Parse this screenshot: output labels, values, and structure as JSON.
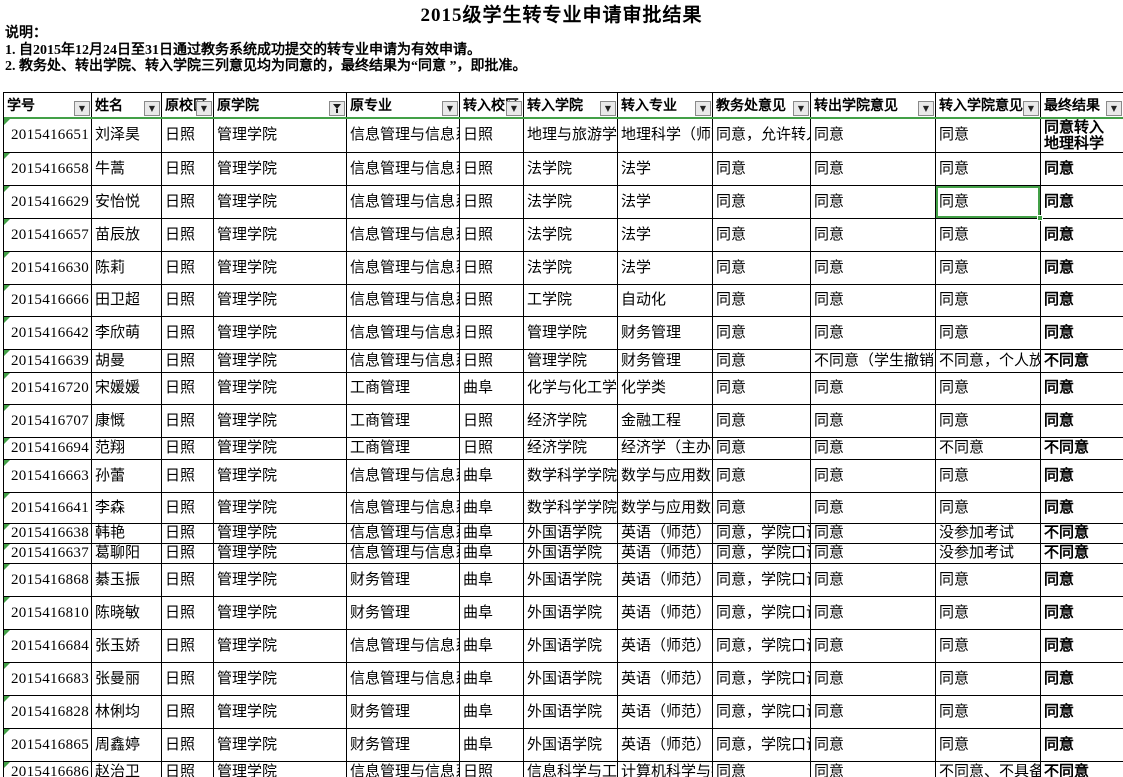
{
  "title": "2015级学生转专业申请审批结果",
  "notes": {
    "heading": "说明：",
    "line1": "1. 自2015年12月24日至31日通过教务系统成功提交的转专业申请为有效申请。",
    "line2": "2. 教务处、转出学院、转入学院三列意见均为同意的，最终结果为“同意 ”，即批准。"
  },
  "colors": {
    "accent_green": "#43a047",
    "grid_line": "#000000",
    "filter_button_bg": "#e9e9e9"
  },
  "table": {
    "columns": [
      {
        "label": "学号",
        "filter_icon": "dropdown-arrow"
      },
      {
        "label": "姓名",
        "filter_icon": "dropdown-arrow"
      },
      {
        "label": "原校区",
        "filter_icon": "dropdown-arrow"
      },
      {
        "label": "原学院",
        "filter_icon": "funnel"
      },
      {
        "label": "原专业",
        "filter_icon": "dropdown-arrow"
      },
      {
        "label": "转入校区",
        "filter_icon": "dropdown-arrow"
      },
      {
        "label": "转入学院",
        "filter_icon": "dropdown-arrow"
      },
      {
        "label": "转入专业",
        "filter_icon": "dropdown-arrow"
      },
      {
        "label": "教务处意见",
        "filter_icon": "dropdown-arrow"
      },
      {
        "label": "转出学院意见",
        "filter_icon": "dropdown-arrow"
      },
      {
        "label": "转入学院意见",
        "filter_icon": "dropdown-arrow"
      },
      {
        "label": "最终结果",
        "filter_icon": "dropdown-arrow"
      }
    ],
    "rows": [
      [
        "2015416651",
        "刘泽昊",
        "日照",
        "管理学院",
        "信息管理与信息系统",
        "日照",
        "地理与旅游学院",
        "地理科学（师范）",
        "同意，允许转入",
        "同意",
        "同意",
        "同意转入\n地理科学"
      ],
      [
        "2015416658",
        "牛蒿",
        "日照",
        "管理学院",
        "信息管理与信息系统",
        "日照",
        "法学院",
        "法学",
        "同意",
        "同意",
        "同意",
        "同意"
      ],
      [
        "2015416629",
        "安怡悦",
        "日照",
        "管理学院",
        "信息管理与信息系统",
        "日照",
        "法学院",
        "法学",
        "同意",
        "同意",
        "同意",
        "同意"
      ],
      [
        "2015416657",
        "苗辰放",
        "日照",
        "管理学院",
        "信息管理与信息系统",
        "日照",
        "法学院",
        "法学",
        "同意",
        "同意",
        "同意",
        "同意"
      ],
      [
        "2015416630",
        "陈莉",
        "日照",
        "管理学院",
        "信息管理与信息系统",
        "日照",
        "法学院",
        "法学",
        "同意",
        "同意",
        "同意",
        "同意"
      ],
      [
        "2015416666",
        "田卫超",
        "日照",
        "管理学院",
        "信息管理与信息系统",
        "日照",
        "工学院",
        "自动化",
        "同意",
        "同意",
        "同意",
        "同意"
      ],
      [
        "2015416642",
        "李欣萌",
        "日照",
        "管理学院",
        "信息管理与信息系统",
        "日照",
        "管理学院",
        "财务管理",
        "同意",
        "同意",
        "同意",
        "同意"
      ],
      [
        "2015416639",
        "胡曼",
        "日照",
        "管理学院",
        "信息管理与信息系统",
        "日照",
        "管理学院",
        "财务管理",
        "同意",
        "不同意（学生撤销）",
        "不同意，个人放弃",
        "不同意"
      ],
      [
        "2015416720",
        "宋媛媛",
        "日照",
        "管理学院",
        "工商管理",
        "曲阜",
        "化学与化工学院",
        "化学类",
        "同意",
        "同意",
        "同意",
        "同意"
      ],
      [
        "2015416707",
        "康慨",
        "日照",
        "管理学院",
        "工商管理",
        "日照",
        "经济学院",
        "金融工程",
        "同意",
        "同意",
        "同意",
        "同意"
      ],
      [
        "2015416694",
        "范翔",
        "日照",
        "管理学院",
        "工商管理",
        "日照",
        "经济学院",
        "经济学（主办）",
        "同意",
        "同意",
        "不同意",
        "不同意"
      ],
      [
        "2015416663",
        "孙蕾",
        "日照",
        "管理学院",
        "信息管理与信息系统",
        "曲阜",
        "数学科学学院",
        "数学与应用数学",
        "同意",
        "同意",
        "同意",
        "同意"
      ],
      [
        "2015416641",
        "李森",
        "日照",
        "管理学院",
        "信息管理与信息系统",
        "曲阜",
        "数学科学学院",
        "数学与应用数学",
        "同意",
        "同意",
        "同意",
        "同意"
      ],
      [
        "2015416638",
        "韩艳",
        "日照",
        "管理学院",
        "信息管理与信息系统",
        "曲阜",
        "外国语学院",
        "英语（师范）",
        "同意，学院口试",
        "同意",
        "没参加考试",
        "不同意"
      ],
      [
        "2015416637",
        "葛聊阳",
        "日照",
        "管理学院",
        "信息管理与信息系统",
        "曲阜",
        "外国语学院",
        "英语（师范）",
        "同意，学院口试",
        "同意",
        "没参加考试",
        "不同意"
      ],
      [
        "2015416868",
        "綦玉振",
        "日照",
        "管理学院",
        "财务管理",
        "曲阜",
        "外国语学院",
        "英语（师范）",
        "同意，学院口试",
        "同意",
        "同意",
        "同意"
      ],
      [
        "2015416810",
        "陈晓敏",
        "日照",
        "管理学院",
        "财务管理",
        "曲阜",
        "外国语学院",
        "英语（师范）",
        "同意，学院口试",
        "同意",
        "同意",
        "同意"
      ],
      [
        "2015416684",
        "张玉娇",
        "日照",
        "管理学院",
        "信息管理与信息系统",
        "曲阜",
        "外国语学院",
        "英语（师范）",
        "同意，学院口试",
        "同意",
        "同意",
        "同意"
      ],
      [
        "2015416683",
        "张曼丽",
        "日照",
        "管理学院",
        "信息管理与信息系统",
        "曲阜",
        "外国语学院",
        "英语（师范）",
        "同意，学院口试",
        "同意",
        "同意",
        "同意"
      ],
      [
        "2015416828",
        "林俐均",
        "日照",
        "管理学院",
        "财务管理",
        "曲阜",
        "外国语学院",
        "英语（师范）",
        "同意，学院口试",
        "同意",
        "同意",
        "同意"
      ],
      [
        "2015416865",
        "周鑫婷",
        "日照",
        "管理学院",
        "财务管理",
        "曲阜",
        "外国语学院",
        "英语（师范）",
        "同意，学院口试",
        "同意",
        "同意",
        "同意"
      ],
      [
        "2015416686",
        "赵治卫",
        "日照",
        "管理学院",
        "信息管理与信息系统",
        "日照",
        "信息科学与工程学院",
        "计算机科学与技术",
        "同意",
        "同意",
        "不同意、不具备条件",
        "不同意"
      ]
    ],
    "selected_cell": {
      "row_index": 2,
      "col_index": 10
    }
  }
}
